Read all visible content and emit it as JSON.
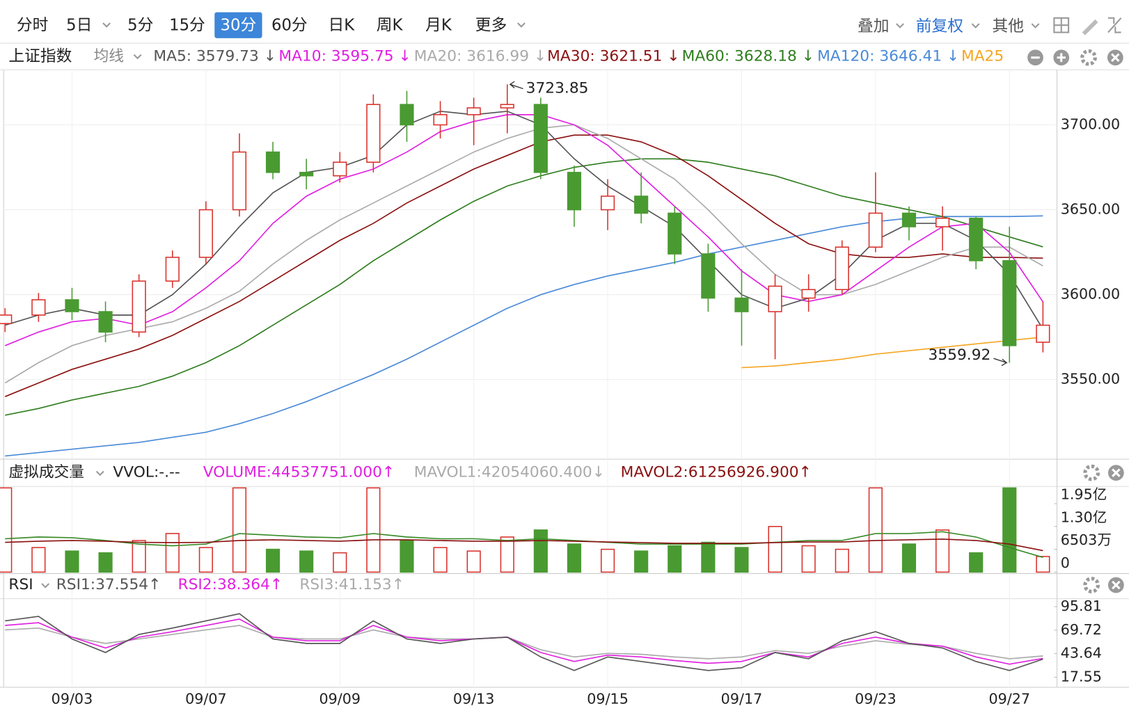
{
  "toolbar": {
    "tabs": [
      "分时",
      "5日",
      "5分",
      "15分",
      "30分",
      "60分",
      "日K",
      "周K",
      "月K",
      "更多"
    ],
    "active": 4,
    "right": [
      "叠加",
      "前复权",
      "其他"
    ]
  },
  "chart_data": [
    {
      "type": "candlestick",
      "title": "上证指数",
      "ma_label": "均线",
      "categories": [
        null,
        null,
        "09/03",
        null,
        null,
        null,
        "09/07",
        null,
        null,
        null,
        "09/09",
        null,
        null,
        null,
        "09/13",
        null,
        null,
        null,
        "09/15",
        null,
        null,
        null,
        "09/17",
        null,
        null,
        null,
        "09/23",
        null,
        null,
        null,
        "09/27",
        null
      ],
      "open": [
        3583,
        3588,
        3597,
        3590,
        3578,
        3608,
        3622,
        3650,
        3684,
        3672,
        3670,
        3678,
        3712,
        3700,
        3706,
        3710,
        3712,
        3672,
        3650,
        3658,
        3648,
        3624,
        3598,
        3590,
        3598,
        3603,
        3628,
        3648,
        3640,
        3645,
        3620,
        3572
      ],
      "high": [
        3592,
        3601,
        3604,
        3596,
        3612,
        3626,
        3655,
        3695,
        3690,
        3680,
        3684,
        3718,
        3720,
        3714,
        3716,
        3723.85,
        3716,
        3676,
        3668,
        3672,
        3652,
        3630,
        3615,
        3612,
        3612,
        3632,
        3672,
        3652,
        3652,
        3646,
        3640,
        3596
      ],
      "low": [
        3578,
        3584,
        3585,
        3572,
        3575,
        3604,
        3618,
        3646,
        3668,
        3662,
        3666,
        3672,
        3690,
        3692,
        3688,
        3695,
        3668,
        3640,
        3638,
        3642,
        3618,
        3590,
        3570,
        3562,
        3590,
        3600,
        3625,
        3632,
        3626,
        3615,
        3559.92,
        3566
      ],
      "close": [
        3588,
        3597,
        3590,
        3578,
        3608,
        3622,
        3650,
        3684,
        3672,
        3670,
        3678,
        3712,
        3700,
        3706,
        3710,
        3712,
        3672,
        3650,
        3658,
        3648,
        3624,
        3598,
        3590,
        3605,
        3603,
        3628,
        3648,
        3640,
        3645,
        3620,
        3570,
        3582
      ],
      "up_color": "#d9302a",
      "down_color": "#4a9a32",
      "series": [
        {
          "name": "MA120",
          "color": "#4a8ad8",
          "values": [
            3505,
            3507,
            3509,
            3511,
            3513,
            3516,
            3519,
            3524,
            3530,
            3537,
            3545,
            3553,
            3562,
            3572,
            3582,
            3592,
            3600,
            3606,
            3611,
            3615,
            3619,
            3624,
            3628,
            3632,
            3636,
            3640,
            3643,
            3645,
            3646,
            3646,
            3646,
            3646.41
          ]
        },
        {
          "name": "MA60",
          "color": "#2e7d1e",
          "values": [
            3529,
            3533,
            3538,
            3542,
            3546,
            3552,
            3560,
            3570,
            3582,
            3594,
            3606,
            3620,
            3632,
            3644,
            3655,
            3664,
            3670,
            3675,
            3678,
            3680,
            3680,
            3678,
            3674,
            3670,
            3664,
            3658,
            3654,
            3650,
            3646,
            3640,
            3634,
            3628.18
          ]
        },
        {
          "name": "MA30",
          "color": "#8b1010",
          "values": [
            3540,
            3548,
            3556,
            3562,
            3568,
            3576,
            3586,
            3596,
            3608,
            3620,
            3632,
            3642,
            3654,
            3664,
            3674,
            3682,
            3690,
            3694,
            3694,
            3690,
            3682,
            3670,
            3656,
            3642,
            3630,
            3624,
            3622,
            3622,
            3624,
            3622,
            3622,
            3621.51
          ]
        },
        {
          "name": "MA20",
          "color": "#aaaaaa",
          "values": [
            3548,
            3560,
            3570,
            3576,
            3580,
            3584,
            3592,
            3602,
            3618,
            3632,
            3644,
            3654,
            3664,
            3674,
            3684,
            3692,
            3698,
            3700,
            3692,
            3680,
            3668,
            3650,
            3630,
            3612,
            3600,
            3600,
            3606,
            3614,
            3622,
            3628,
            3628,
            3616.99
          ]
        },
        {
          "name": "MA10",
          "color": "#e020e0",
          "values": [
            3570,
            3578,
            3584,
            3586,
            3582,
            3590,
            3604,
            3620,
            3642,
            3658,
            3668,
            3674,
            3684,
            3696,
            3702,
            3706,
            3706,
            3700,
            3688,
            3670,
            3652,
            3634,
            3614,
            3600,
            3596,
            3600,
            3614,
            3628,
            3640,
            3642,
            3625,
            3595.75
          ]
        },
        {
          "name": "MA5",
          "color": "#555555",
          "values": [
            3582,
            3588,
            3592,
            3588,
            3588,
            3600,
            3618,
            3640,
            3660,
            3672,
            3675,
            3682,
            3700,
            3708,
            3706,
            3708,
            3700,
            3680,
            3664,
            3652,
            3640,
            3620,
            3600,
            3592,
            3598,
            3612,
            3632,
            3642,
            3642,
            3632,
            3612,
            3579.73
          ]
        },
        {
          "name": "MA25",
          "color": "#f5a623",
          "values": [
            null,
            null,
            null,
            null,
            null,
            null,
            null,
            null,
            null,
            null,
            null,
            null,
            null,
            null,
            null,
            null,
            null,
            null,
            null,
            null,
            null,
            null,
            3557,
            3558,
            3560,
            3562,
            3565,
            3567,
            3569,
            3571,
            3573,
            3575
          ]
        }
      ],
      "indicators": [
        {
          "text": "MA5: 3579.73 ↓",
          "color": "#555555"
        },
        {
          "text": "MA10: 3595.75 ↓",
          "color": "#e020e0"
        },
        {
          "text": "MA20: 3616.99 ↓",
          "color": "#aaaaaa"
        },
        {
          "text": "MA30: 3621.51 ↓",
          "color": "#8b1010"
        },
        {
          "text": "MA60: 3628.18 ↓",
          "color": "#2e7d1e"
        },
        {
          "text": "MA120: 3646.41 ↓",
          "color": "#4a8ad8"
        },
        {
          "text": "MA25",
          "color": "#f5a623"
        }
      ],
      "ylim": [
        3504,
        3732
      ],
      "yticks": [
        {
          "value": 3550,
          "label": "3550.00"
        },
        {
          "value": 3600,
          "label": "3600.00"
        },
        {
          "value": 3650,
          "label": "3650.00"
        },
        {
          "value": 3700,
          "label": "3700.00"
        }
      ],
      "grid": true,
      "max_label": "3723.85",
      "min_label": "3559.92"
    },
    {
      "type": "bar",
      "title": "虚拟成交量",
      "subtitle": "VVOL:-.--",
      "values": [
        240000000,
        70000000,
        60000000,
        55000000,
        90000000,
        110000000,
        70000000,
        240000000,
        65000000,
        60000000,
        55000000,
        240000000,
        90000000,
        70000000,
        60000000,
        100000000,
        120000000,
        80000000,
        65000000,
        60000000,
        75000000,
        85000000,
        70000000,
        130000000,
        75000000,
        65000000,
        240000000,
        80000000,
        120000000,
        55000000,
        240000000,
        44537751
      ],
      "series": [
        {
          "name": "MAVOL1",
          "color": "#3a8c2a",
          "values": [
            95000000,
            100000000,
            98000000,
            90000000,
            80000000,
            75000000,
            80000000,
            110000000,
            105000000,
            100000000,
            98000000,
            110000000,
            100000000,
            95000000,
            95000000,
            90000000,
            95000000,
            90000000,
            85000000,
            80000000,
            80000000,
            80000000,
            80000000,
            85000000,
            90000000,
            90000000,
            110000000,
            110000000,
            115000000,
            100000000,
            70000000,
            42054060.4
          ]
        },
        {
          "name": "MAVOL2",
          "color": "#8b1010",
          "values": [
            85000000,
            88000000,
            90000000,
            88000000,
            85000000,
            84000000,
            85000000,
            90000000,
            92000000,
            90000000,
            88000000,
            92000000,
            92000000,
            90000000,
            88000000,
            88000000,
            90000000,
            88000000,
            86000000,
            84000000,
            82000000,
            82000000,
            82000000,
            84000000,
            86000000,
            86000000,
            90000000,
            92000000,
            94000000,
            90000000,
            80000000,
            61256926.9
          ]
        }
      ],
      "indicators": [
        {
          "text": "VOLUME:44537751.000↑",
          "color": "#e020e0"
        },
        {
          "text": "MAVOL1:42054060.400↓",
          "color": "#aaaaaa"
        },
        {
          "text": "MAVOL2:61256926.900↑",
          "color": "#8b1010"
        }
      ],
      "ylim": [
        0,
        242000000
      ],
      "yticks": [
        0,
        {
          "value": 65030000,
          "label": "6503万"
        },
        {
          "value": 130000000,
          "label": "1.30亿"
        },
        {
          "value": 195000000,
          "label": "1.95亿"
        }
      ]
    },
    {
      "type": "line",
      "title": "RSI",
      "series": [
        {
          "name": "RSI3",
          "color": "#aaaaaa",
          "values": [
            70,
            72,
            62,
            55,
            60,
            65,
            70,
            75,
            62,
            60,
            60,
            70,
            62,
            60,
            60,
            62,
            48,
            40,
            44,
            43,
            40,
            38,
            40,
            47,
            44,
            52,
            58,
            54,
            52,
            44,
            38,
            41.153
          ]
        },
        {
          "name": "RSI2",
          "color": "#e020e0",
          "values": [
            75,
            78,
            62,
            50,
            62,
            68,
            75,
            82,
            62,
            58,
            58,
            75,
            62,
            58,
            60,
            62,
            45,
            35,
            42,
            40,
            36,
            33,
            35,
            45,
            40,
            55,
            62,
            55,
            52,
            40,
            32,
            38.364
          ]
        },
        {
          "name": "RSI1",
          "color": "#555555",
          "values": [
            80,
            85,
            60,
            45,
            65,
            72,
            80,
            88,
            60,
            55,
            55,
            80,
            60,
            55,
            60,
            62,
            40,
            25,
            40,
            35,
            30,
            25,
            28,
            45,
            38,
            58,
            68,
            55,
            50,
            35,
            25,
            37.554
          ]
        }
      ],
      "indicators": [
        {
          "text": "RSI1:37.554↑",
          "color": "#555555"
        },
        {
          "text": "RSI2:38.364↑",
          "color": "#e020e0"
        },
        {
          "text": "RSI3:41.153↑",
          "color": "#aaaaaa"
        }
      ],
      "ylim": [
        8,
        103.8
      ],
      "yticks": [
        17.55,
        43.64,
        69.72,
        95.81
      ]
    }
  ]
}
